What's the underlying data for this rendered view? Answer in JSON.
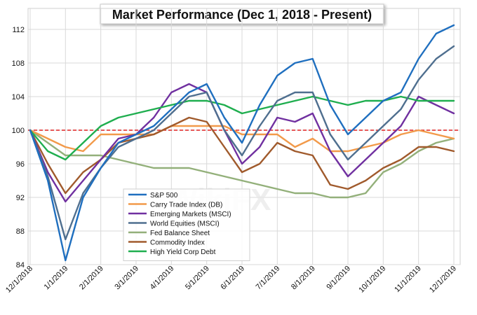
{
  "chart_data": {
    "type": "line",
    "title": "Market Performance (Dec 1, 2018 - Present)",
    "xlabel": "",
    "ylabel": "",
    "ylim": [
      84,
      114
    ],
    "y_ticks": [
      84,
      88,
      92,
      96,
      100,
      104,
      108,
      112
    ],
    "x_ticks": [
      "12/1/2018",
      "1/1/2019",
      "2/1/2019",
      "3/1/2019",
      "4/1/2019",
      "5/1/2019",
      "6/1/2019",
      "7/1/2019",
      "8/1/2019",
      "9/1/2019",
      "10/1/2019",
      "11/1/2019",
      "12/1/2019"
    ],
    "grid": true,
    "legend_position": "lower-left",
    "reference_line": {
      "value": 100,
      "color": "#e02020",
      "style": "dashed"
    },
    "x": [
      "12/1/2018",
      "12/15/2018",
      "1/1/2019",
      "1/15/2019",
      "2/1/2019",
      "2/15/2019",
      "3/1/2019",
      "3/15/2019",
      "4/1/2019",
      "4/15/2019",
      "5/1/2019",
      "5/15/2019",
      "6/1/2019",
      "6/15/2019",
      "7/1/2019",
      "7/15/2019",
      "8/1/2019",
      "8/15/2019",
      "9/1/2019",
      "9/15/2019",
      "10/1/2019",
      "10/15/2019",
      "11/1/2019",
      "11/15/2019",
      "12/1/2019"
    ],
    "series": [
      {
        "name": "S&P 500",
        "color": "#1f6fbf",
        "values": [
          100,
          94,
          84.5,
          92,
          95.5,
          98.5,
          99.5,
          100.5,
          102.5,
          104.5,
          105.5,
          101.5,
          98.5,
          103,
          106.5,
          108,
          108.5,
          103,
          99.5,
          101.5,
          103.5,
          104.5,
          108.5,
          111.5,
          112.5
        ]
      },
      {
        "name": "Carry Trade Index (DB)",
        "color": "#f29a4a",
        "values": [
          100,
          99,
          98,
          97.5,
          99.5,
          99.5,
          99.5,
          99.5,
          100.5,
          100.5,
          100.5,
          100.5,
          99.5,
          99.5,
          99.5,
          98,
          99,
          97.5,
          97.5,
          98,
          98.5,
          99.5,
          100,
          99.5,
          99
        ]
      },
      {
        "name": "Emerging Markets (MSCI)",
        "color": "#7030a0",
        "values": [
          100,
          95,
          91.5,
          94,
          96.5,
          99,
          99.5,
          101.5,
          104.5,
          105.5,
          104.5,
          100,
          96,
          98,
          101.5,
          101,
          102,
          97.5,
          94.5,
          96.5,
          98.5,
          100.5,
          104,
          103,
          102
        ]
      },
      {
        "name": "World Equities (MSCI)",
        "color": "#4f6f8f",
        "values": [
          100,
          94.5,
          87,
          92.5,
          95.5,
          98,
          99,
          100,
          102,
          104,
          104.5,
          100,
          97,
          100.5,
          103.5,
          104.5,
          104.5,
          99.5,
          96.5,
          98.5,
          100.5,
          102.5,
          106,
          108.5,
          110
        ]
      },
      {
        "name": "Fed Balance Sheet",
        "color": "#93b07a",
        "values": [
          100,
          98.5,
          97,
          97,
          97,
          96.5,
          96,
          95.5,
          95.5,
          95.5,
          95,
          94.5,
          94,
          93.5,
          93,
          92.5,
          92.5,
          92,
          92,
          92.5,
          95,
          96,
          97.5,
          98.5,
          99
        ]
      },
      {
        "name": "Commodity Index",
        "color": "#a05a2c",
        "values": [
          100,
          96,
          92.5,
          95,
          96.5,
          98.5,
          99,
          99.5,
          100.5,
          101.5,
          101,
          98,
          95,
          96,
          98.5,
          97.5,
          97,
          93.5,
          93,
          94,
          95.5,
          96.5,
          98,
          98,
          97.5
        ]
      },
      {
        "name": "High Yield Corp Debt",
        "color": "#1fae4f",
        "values": [
          100,
          97.5,
          96.5,
          98.5,
          100.5,
          101.5,
          102,
          102.5,
          103,
          103.5,
          103.5,
          103,
          102,
          102.5,
          103,
          103.5,
          104,
          103.5,
          103,
          103.5,
          103.5,
          104,
          103.5,
          103.5,
          103.5
        ]
      }
    ],
    "watermark": "WikiFX"
  }
}
